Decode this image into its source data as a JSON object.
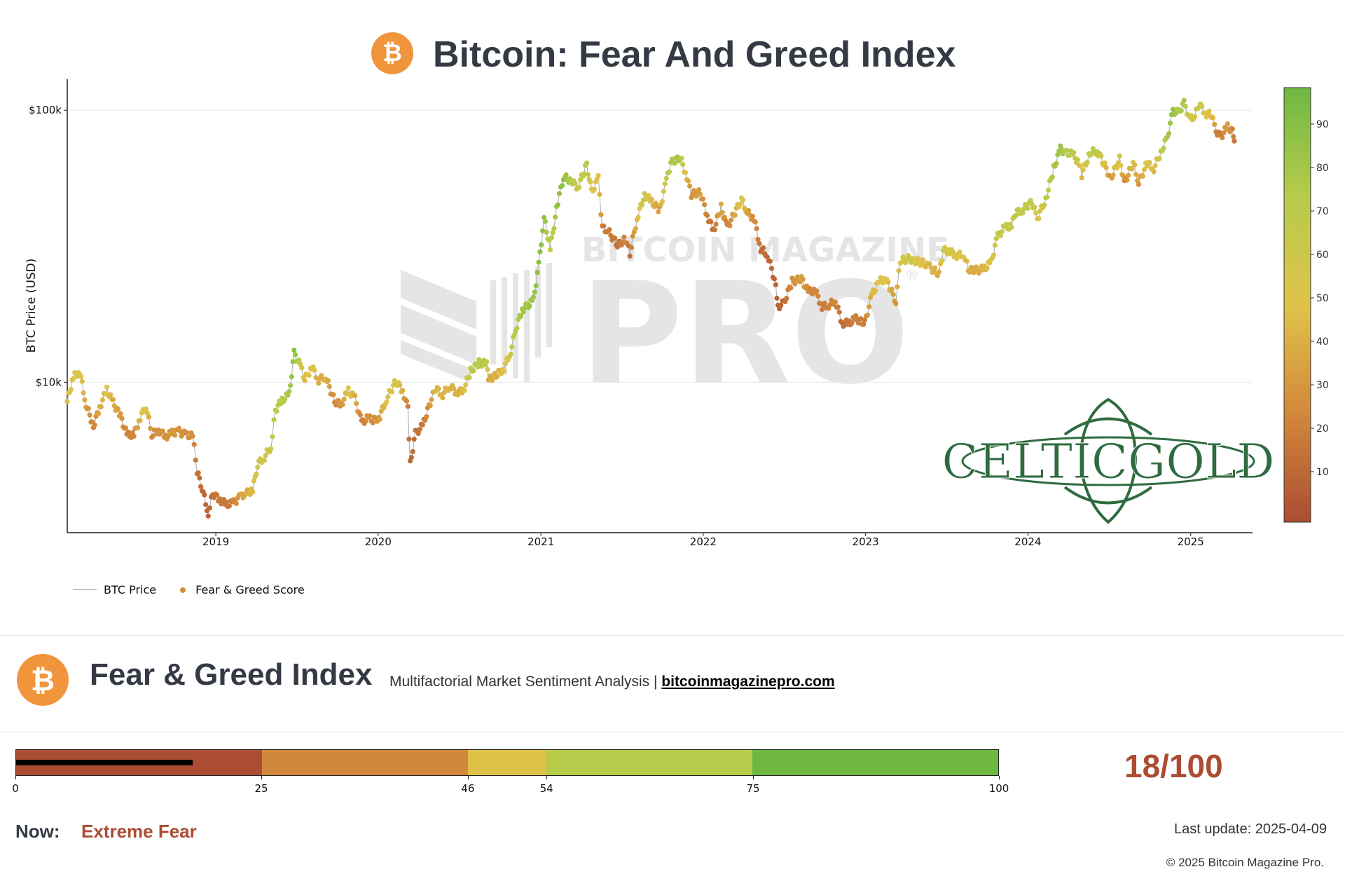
{
  "header": {
    "title": "Bitcoin: Fear And Greed Index",
    "logo_icon": "bitcoin-logo-icon",
    "logo_glyph": "₿"
  },
  "watermarks": {
    "brand_small": "BITCOIN MAGAZINE",
    "brand_big": "PRO",
    "partner": "CELTICGOLD",
    "registered": "®"
  },
  "legend": {
    "price_label": "BTC Price",
    "score_label": "Fear & Greed Score"
  },
  "colorbar": {
    "ticks": [
      "10",
      "20",
      "30",
      "40",
      "50",
      "60",
      "70",
      "80",
      "90"
    ]
  },
  "chart_data": {
    "type": "scatter",
    "ylabel": "BTC Price (USD)",
    "yscale": "log",
    "ylim": [
      2800,
      130000
    ],
    "xlim": [
      "2018-02-01",
      "2025-05-20"
    ],
    "x_ticks": [
      "2019",
      "2020",
      "2021",
      "2022",
      "2023",
      "2024",
      "2025"
    ],
    "y_ticks": [
      "$10k",
      "$100k"
    ],
    "color_scale": "Fear & Greed Score 0-100 (red to green)",
    "series": [
      {
        "name": "BTC Price",
        "points": [
          [
            "2018-02-01",
            8500,
            48
          ],
          [
            "2018-02-15",
            10500,
            52
          ],
          [
            "2018-03-01",
            11000,
            55
          ],
          [
            "2018-03-15",
            8300,
            35
          ],
          [
            "2018-04-01",
            6900,
            22
          ],
          [
            "2018-04-15",
            8100,
            40
          ],
          [
            "2018-05-01",
            9400,
            52
          ],
          [
            "2018-05-15",
            8400,
            40
          ],
          [
            "2018-06-01",
            7500,
            33
          ],
          [
            "2018-06-15",
            6400,
            22
          ],
          [
            "2018-07-01",
            6400,
            25
          ],
          [
            "2018-07-15",
            7400,
            45
          ],
          [
            "2018-07-28",
            8200,
            55
          ],
          [
            "2018-08-10",
            6400,
            25
          ],
          [
            "2018-08-25",
            6700,
            30
          ],
          [
            "2018-09-10",
            6300,
            28
          ],
          [
            "2018-09-25",
            6500,
            32
          ],
          [
            "2018-10-10",
            6600,
            30
          ],
          [
            "2018-10-25",
            6400,
            28
          ],
          [
            "2018-11-10",
            6350,
            28
          ],
          [
            "2018-11-20",
            4700,
            15
          ],
          [
            "2018-12-01",
            4100,
            12
          ],
          [
            "2018-12-15",
            3300,
            10
          ],
          [
            "2018-12-25",
            3900,
            15
          ],
          [
            "2019-01-10",
            3700,
            20
          ],
          [
            "2019-01-25",
            3550,
            18
          ],
          [
            "2019-02-10",
            3600,
            22
          ],
          [
            "2019-02-25",
            3800,
            35
          ],
          [
            "2019-03-10",
            3900,
            40
          ],
          [
            "2019-03-25",
            4000,
            45
          ],
          [
            "2019-04-05",
            5000,
            60
          ],
          [
            "2019-04-20",
            5300,
            60
          ],
          [
            "2019-05-05",
            5800,
            62
          ],
          [
            "2019-05-15",
            7900,
            72
          ],
          [
            "2019-05-30",
            8600,
            72
          ],
          [
            "2019-06-15",
            9000,
            80
          ],
          [
            "2019-06-26",
            12800,
            90
          ],
          [
            "2019-07-10",
            11500,
            65
          ],
          [
            "2019-07-20",
            10200,
            45
          ],
          [
            "2019-08-05",
            11400,
            55
          ],
          [
            "2019-08-20",
            10200,
            40
          ],
          [
            "2019-09-05",
            10500,
            42
          ],
          [
            "2019-09-25",
            8500,
            25
          ],
          [
            "2019-10-10",
            8300,
            30
          ],
          [
            "2019-10-26",
            9300,
            52
          ],
          [
            "2019-11-10",
            8700,
            40
          ],
          [
            "2019-11-25",
            7100,
            20
          ],
          [
            "2019-12-10",
            7400,
            30
          ],
          [
            "2019-12-20",
            7200,
            25
          ],
          [
            "2020-01-05",
            7500,
            35
          ],
          [
            "2020-01-20",
            8700,
            50
          ],
          [
            "2020-02-10",
            10100,
            55
          ],
          [
            "2020-02-25",
            9300,
            42
          ],
          [
            "2020-03-08",
            8000,
            20
          ],
          [
            "2020-03-13",
            5000,
            10
          ],
          [
            "2020-03-25",
            6500,
            15
          ],
          [
            "2020-04-10",
            6900,
            18
          ],
          [
            "2020-04-30",
            8700,
            35
          ],
          [
            "2020-05-10",
            9500,
            45
          ],
          [
            "2020-05-25",
            9000,
            42
          ],
          [
            "2020-06-10",
            9700,
            45
          ],
          [
            "2020-06-25",
            9200,
            42
          ],
          [
            "2020-07-10",
            9300,
            45
          ],
          [
            "2020-07-27",
            11000,
            70
          ],
          [
            "2020-08-15",
            11800,
            75
          ],
          [
            "2020-09-01",
            11700,
            70
          ],
          [
            "2020-09-05",
            10200,
            40
          ],
          [
            "2020-09-25",
            10700,
            42
          ],
          [
            "2020-10-10",
            11300,
            50
          ],
          [
            "2020-10-25",
            13000,
            62
          ],
          [
            "2020-11-05",
            15600,
            75
          ],
          [
            "2020-11-20",
            18500,
            82
          ],
          [
            "2020-12-01",
            19000,
            82
          ],
          [
            "2020-12-15",
            20000,
            84
          ],
          [
            "2020-12-27",
            27000,
            90
          ],
          [
            "2021-01-08",
            40000,
            88
          ],
          [
            "2021-01-22",
            31000,
            65
          ],
          [
            "2021-02-08",
            46000,
            88
          ],
          [
            "2021-02-21",
            57000,
            90
          ],
          [
            "2021-03-10",
            55000,
            75
          ],
          [
            "2021-03-25",
            52000,
            65
          ],
          [
            "2021-04-14",
            63000,
            75
          ],
          [
            "2021-04-25",
            50000,
            50
          ],
          [
            "2021-05-10",
            56000,
            55
          ],
          [
            "2021-05-19",
            37000,
            20
          ],
          [
            "2021-06-01",
            36000,
            20
          ],
          [
            "2021-06-22",
            32000,
            15
          ],
          [
            "2021-07-10",
            33500,
            25
          ],
          [
            "2021-07-20",
            29800,
            15
          ],
          [
            "2021-08-05",
            40000,
            45
          ],
          [
            "2021-08-22",
            49000,
            65
          ],
          [
            "2021-09-07",
            46000,
            45
          ],
          [
            "2021-09-25",
            43000,
            35
          ],
          [
            "2021-10-10",
            55000,
            70
          ],
          [
            "2021-10-20",
            64000,
            78
          ],
          [
            "2021-11-10",
            67000,
            80
          ],
          [
            "2021-11-25",
            57000,
            45
          ],
          [
            "2021-12-05",
            49000,
            28
          ],
          [
            "2021-12-25",
            50000,
            35
          ],
          [
            "2022-01-10",
            41000,
            22
          ],
          [
            "2022-01-24",
            36000,
            15
          ],
          [
            "2022-02-10",
            44000,
            40
          ],
          [
            "2022-02-24",
            37000,
            20
          ],
          [
            "2022-03-28",
            47000,
            55
          ],
          [
            "2022-04-10",
            42000,
            35
          ],
          [
            "2022-04-25",
            40000,
            28
          ],
          [
            "2022-05-10",
            31000,
            15
          ],
          [
            "2022-05-25",
            29500,
            12
          ],
          [
            "2022-06-13",
            23000,
            10
          ],
          [
            "2022-06-18",
            19000,
            8
          ],
          [
            "2022-07-01",
            19500,
            12
          ],
          [
            "2022-07-20",
            23500,
            28
          ],
          [
            "2022-08-10",
            24000,
            35
          ],
          [
            "2022-08-25",
            21500,
            25
          ],
          [
            "2022-09-10",
            21700,
            25
          ],
          [
            "2022-09-25",
            19000,
            20
          ],
          [
            "2022-10-10",
            19200,
            22
          ],
          [
            "2022-10-25",
            20000,
            25
          ],
          [
            "2022-11-09",
            16500,
            12
          ],
          [
            "2022-11-25",
            16500,
            18
          ],
          [
            "2022-12-10",
            17100,
            22
          ],
          [
            "2022-12-30",
            16500,
            20
          ],
          [
            "2023-01-15",
            20900,
            45
          ],
          [
            "2023-02-01",
            23500,
            50
          ],
          [
            "2023-02-15",
            24000,
            52
          ],
          [
            "2023-03-10",
            20000,
            30
          ],
          [
            "2023-03-20",
            28000,
            55
          ],
          [
            "2023-04-10",
            28500,
            62
          ],
          [
            "2023-04-20",
            28000,
            58
          ],
          [
            "2023-05-10",
            27500,
            48
          ],
          [
            "2023-05-25",
            26500,
            45
          ],
          [
            "2023-06-15",
            25000,
            40
          ],
          [
            "2023-06-25",
            30500,
            62
          ],
          [
            "2023-07-10",
            30200,
            58
          ],
          [
            "2023-07-25",
            29300,
            52
          ],
          [
            "2023-08-10",
            29500,
            52
          ],
          [
            "2023-08-20",
            26000,
            40
          ],
          [
            "2023-09-10",
            25800,
            40
          ],
          [
            "2023-09-25",
            26200,
            45
          ],
          [
            "2023-10-10",
            27500,
            50
          ],
          [
            "2023-10-25",
            34500,
            68
          ],
          [
            "2023-11-10",
            37000,
            68
          ],
          [
            "2023-11-25",
            37500,
            65
          ],
          [
            "2023-12-05",
            42000,
            72
          ],
          [
            "2023-12-20",
            43000,
            70
          ],
          [
            "2024-01-10",
            46000,
            70
          ],
          [
            "2024-01-22",
            40000,
            50
          ],
          [
            "2024-02-10",
            47000,
            72
          ],
          [
            "2024-02-28",
            61000,
            80
          ],
          [
            "2024-03-14",
            72000,
            85
          ],
          [
            "2024-03-25",
            70000,
            75
          ],
          [
            "2024-04-10",
            69000,
            72
          ],
          [
            "2024-04-25",
            64000,
            60
          ],
          [
            "2024-05-01",
            58000,
            45
          ],
          [
            "2024-05-20",
            70000,
            70
          ],
          [
            "2024-06-05",
            71000,
            72
          ],
          [
            "2024-06-25",
            61000,
            45
          ],
          [
            "2024-07-05",
            56000,
            30
          ],
          [
            "2024-07-25",
            66000,
            60
          ],
          [
            "2024-08-05",
            54000,
            25
          ],
          [
            "2024-08-25",
            64000,
            50
          ],
          [
            "2024-09-06",
            54000,
            30
          ],
          [
            "2024-09-25",
            64000,
            55
          ],
          [
            "2024-10-10",
            61000,
            45
          ],
          [
            "2024-10-29",
            72000,
            70
          ],
          [
            "2024-11-10",
            80000,
            80
          ],
          [
            "2024-11-22",
            99000,
            88
          ],
          [
            "2024-12-05",
            98000,
            75
          ],
          [
            "2024-12-17",
            106000,
            80
          ],
          [
            "2024-12-30",
            93000,
            60
          ],
          [
            "2025-01-10",
            95000,
            55
          ],
          [
            "2025-01-20",
            105000,
            70
          ],
          [
            "2025-02-05",
            97000,
            50
          ],
          [
            "2025-02-20",
            96000,
            45
          ],
          [
            "2025-02-27",
            84000,
            22
          ],
          [
            "2025-03-10",
            80000,
            20
          ],
          [
            "2025-03-25",
            87000,
            35
          ],
          [
            "2025-04-05",
            83000,
            25
          ],
          [
            "2025-04-09",
            77000,
            18
          ]
        ]
      },
      {
        "name": "Fear & Greed Score",
        "color_by": "score"
      }
    ]
  },
  "index_panel": {
    "title": "Fear & Greed Index",
    "subtitle": "Multifactorial Market Sentiment Analysis |",
    "link": "bitcoinmagazinepro.com",
    "gauge": {
      "value": 18,
      "max": 100,
      "boundaries": [
        0,
        25,
        46,
        54,
        75,
        100
      ],
      "labels": [
        "0",
        "25",
        "46",
        "54",
        "75",
        "100"
      ],
      "colors": [
        "#ab4d33",
        "#d2883b",
        "#dfc349",
        "#b7cb4b",
        "#6eb842"
      ]
    },
    "score_text": "18/100",
    "now_label": "Now:",
    "now_value": "Extreme Fear",
    "last_update": "Last update: 2025-04-09",
    "copyright": "© 2025 Bitcoin Magazine Pro."
  }
}
